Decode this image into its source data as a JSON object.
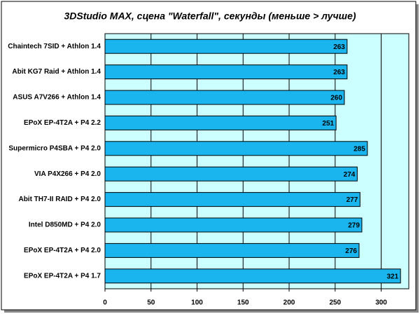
{
  "chart_data": {
    "type": "hbar",
    "title": "3DStudio MAX, сцена \"Waterfall\", секунды (меньше > лучше)",
    "categories": [
      "Chaintech 7SID + Athlon 1.4",
      "Abit KG7 Raid + Athlon 1.4",
      "ASUS A7V266 + Athlon 1.4",
      "EPoX EP-4T2A + P4 2.2",
      "Supermicro P4SBA + P4 2.0",
      "VIA P4X266 + P4 2.0",
      "Abit TH7-II RAID + P4 2.0",
      "Intel D850MD + P4 2.0",
      "EPoX EP-4T2A + P4 2.0",
      "EPoX EP-4T2A + P4 1.7"
    ],
    "values": [
      263,
      263,
      260,
      251,
      285,
      274,
      277,
      279,
      276,
      321
    ],
    "color": "#1ab4ee",
    "xlim": [
      0,
      330
    ],
    "xticks": [
      0,
      50,
      100,
      150,
      200,
      250,
      300
    ],
    "grid": true
  }
}
